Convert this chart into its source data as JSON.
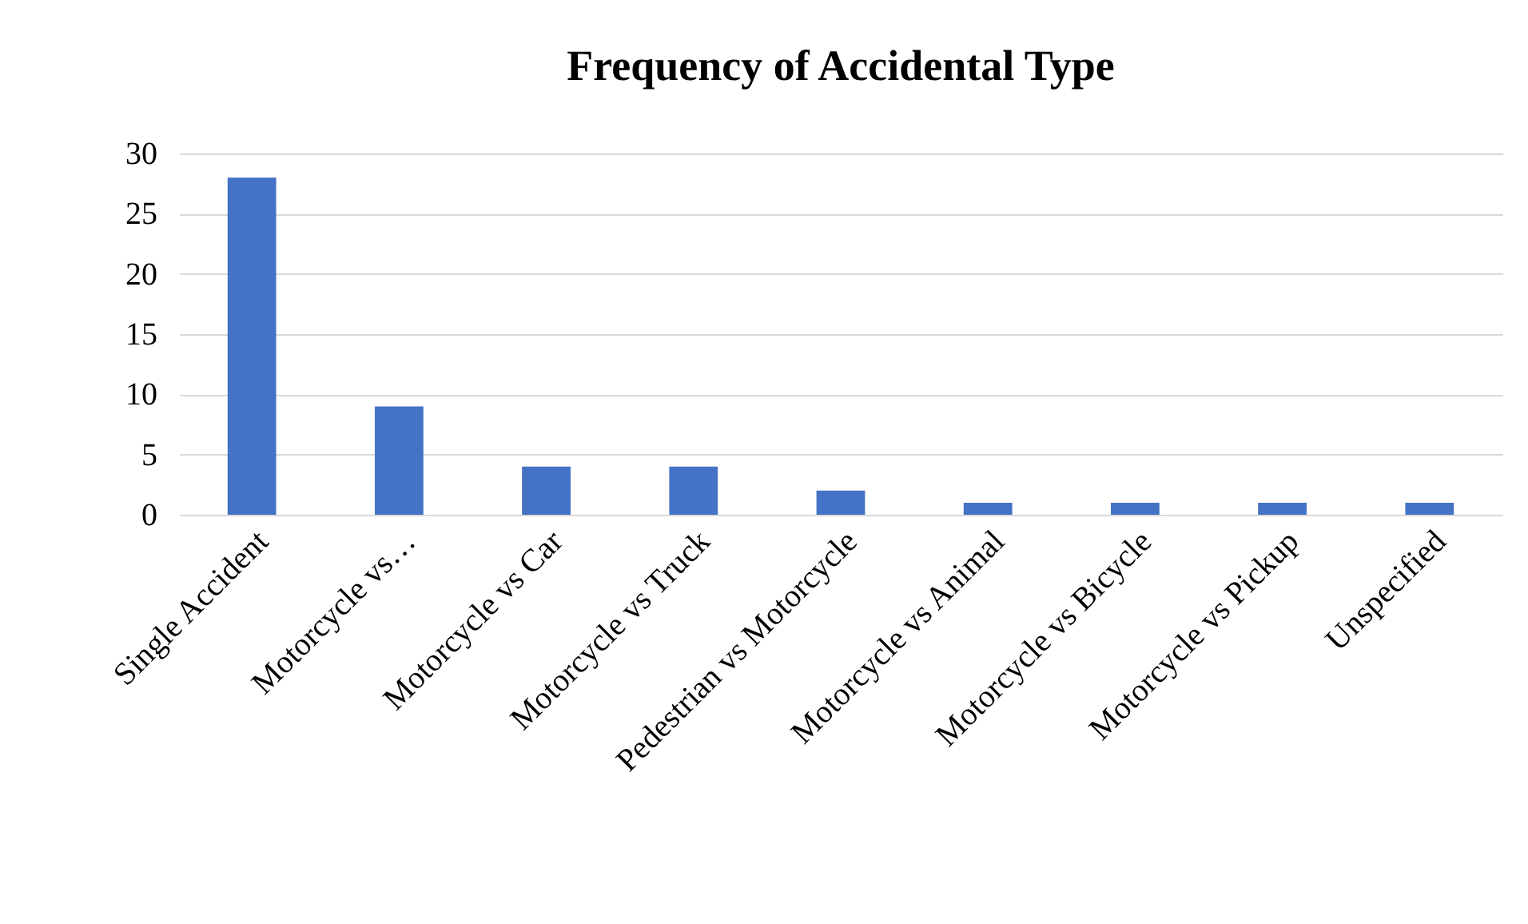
{
  "chart_data": {
    "type": "bar",
    "title": "Frequency of Accidental Type",
    "categories": [
      "Single Accident",
      "Motorcycle vs…",
      "Motorcycle vs Car",
      "Motorcycle vs Truck",
      "Pedestrian vs Motorcycle",
      "Motorcycle vs Animal",
      "Motorcycle vs Bicycle",
      "Motorcycle vs Pickup",
      "Unspecified"
    ],
    "values": [
      28,
      9,
      4,
      4,
      2,
      1,
      1,
      1,
      1
    ],
    "color": "#4472c4",
    "ylim": [
      0,
      30
    ],
    "yticks": [
      0,
      5,
      10,
      15,
      20,
      25,
      30
    ],
    "grid": "y"
  }
}
